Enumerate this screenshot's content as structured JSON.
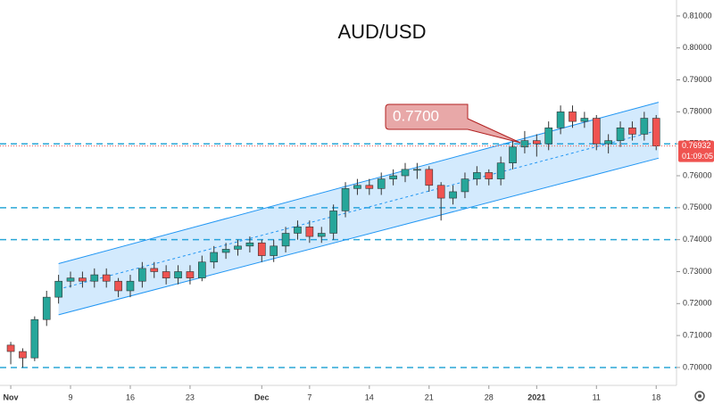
{
  "chart_data": {
    "type": "candlestick",
    "title": "AUD/USD",
    "x": [
      0,
      1,
      2,
      3,
      4,
      5,
      6,
      7,
      8,
      9,
      10,
      11,
      12,
      13,
      14,
      15,
      16,
      17,
      18,
      19,
      20,
      21,
      22,
      23,
      24,
      25,
      26,
      27,
      28,
      29,
      30,
      31,
      32,
      33,
      34,
      35,
      36,
      37,
      38,
      39,
      40,
      41,
      42,
      43,
      44,
      45,
      46,
      47,
      48,
      49,
      50,
      51,
      52,
      53,
      54
    ],
    "open": [
      0.707,
      0.705,
      0.703,
      0.715,
      0.722,
      0.727,
      0.728,
      0.727,
      0.729,
      0.727,
      0.724,
      0.727,
      0.731,
      0.73,
      0.728,
      0.73,
      0.728,
      0.733,
      0.736,
      0.737,
      0.738,
      0.739,
      0.735,
      0.738,
      0.742,
      0.744,
      0.741,
      0.742,
      0.749,
      0.756,
      0.757,
      0.756,
      0.759,
      0.76,
      0.762,
      0.762,
      0.757,
      0.753,
      0.755,
      0.759,
      0.761,
      0.759,
      0.764,
      0.769,
      0.771,
      0.77,
      0.775,
      0.78,
      0.777,
      0.778,
      0.77,
      0.771,
      0.775,
      0.773,
      0.778
    ],
    "high": [
      0.708,
      0.706,
      0.716,
      0.724,
      0.729,
      0.73,
      0.73,
      0.731,
      0.731,
      0.728,
      0.729,
      0.733,
      0.733,
      0.732,
      0.732,
      0.732,
      0.735,
      0.738,
      0.739,
      0.74,
      0.741,
      0.74,
      0.74,
      0.744,
      0.746,
      0.746,
      0.744,
      0.751,
      0.758,
      0.759,
      0.759,
      0.761,
      0.762,
      0.764,
      0.764,
      0.763,
      0.758,
      0.757,
      0.761,
      0.763,
      0.762,
      0.766,
      0.771,
      0.774,
      0.773,
      0.777,
      0.782,
      0.782,
      0.78,
      0.779,
      0.773,
      0.777,
      0.777,
      0.78,
      0.779
    ],
    "low": [
      0.701,
      0.7,
      0.702,
      0.713,
      0.72,
      0.725,
      0.725,
      0.725,
      0.725,
      0.722,
      0.722,
      0.725,
      0.728,
      0.726,
      0.726,
      0.726,
      0.727,
      0.731,
      0.734,
      0.735,
      0.736,
      0.733,
      0.733,
      0.736,
      0.74,
      0.739,
      0.739,
      0.74,
      0.747,
      0.754,
      0.754,
      0.754,
      0.757,
      0.758,
      0.759,
      0.755,
      0.746,
      0.751,
      0.753,
      0.757,
      0.757,
      0.757,
      0.762,
      0.767,
      0.766,
      0.768,
      0.773,
      0.775,
      0.775,
      0.768,
      0.767,
      0.769,
      0.771,
      0.771,
      0.768
    ],
    "close": [
      0.705,
      0.703,
      0.715,
      0.722,
      0.727,
      0.728,
      0.727,
      0.729,
      0.727,
      0.724,
      0.727,
      0.731,
      0.73,
      0.728,
      0.73,
      0.728,
      0.733,
      0.736,
      0.737,
      0.738,
      0.739,
      0.735,
      0.738,
      0.742,
      0.744,
      0.741,
      0.742,
      0.749,
      0.756,
      0.757,
      0.756,
      0.759,
      0.76,
      0.762,
      0.762,
      0.757,
      0.753,
      0.755,
      0.759,
      0.761,
      0.759,
      0.764,
      0.769,
      0.771,
      0.77,
      0.775,
      0.78,
      0.777,
      0.778,
      0.77,
      0.771,
      0.775,
      0.773,
      0.778,
      0.7693
    ],
    "up_color": "#26a69a",
    "down_color": "#ef5350",
    "xlim": [
      -0.9,
      55.7
    ],
    "xticks": [
      {
        "value": 0,
        "label": "Nov"
      },
      {
        "value": 5,
        "label": "9"
      },
      {
        "value": 10,
        "label": "16"
      },
      {
        "value": 15,
        "label": "23"
      },
      {
        "value": 21,
        "label": "Dec"
      },
      {
        "value": 25,
        "label": "7"
      },
      {
        "value": 30,
        "label": "14"
      },
      {
        "value": 35,
        "label": "21"
      },
      {
        "value": 40,
        "label": "28"
      },
      {
        "value": 44,
        "label": "2021"
      },
      {
        "value": 49,
        "label": "11"
      },
      {
        "value": 54,
        "label": "18"
      }
    ],
    "ylim": [
      0.6944,
      0.815
    ],
    "yticks": [
      {
        "value": 0.7,
        "label": "0.70000"
      },
      {
        "value": 0.71,
        "label": "0.71000"
      },
      {
        "value": 0.72,
        "label": "0.72000"
      },
      {
        "value": 0.73,
        "label": "0.73000"
      },
      {
        "value": 0.74,
        "label": "0.74000"
      },
      {
        "value": 0.75,
        "label": "0.75000"
      },
      {
        "value": 0.76,
        "label": "0.76000"
      },
      {
        "value": 0.77,
        "label": "0.77000"
      },
      {
        "value": 0.78,
        "label": "0.78000"
      },
      {
        "value": 0.79,
        "label": "0.79000"
      },
      {
        "value": 0.8,
        "label": "0.80000"
      },
      {
        "value": 0.81,
        "label": "0.81000"
      }
    ],
    "hlines": [
      0.7,
      0.74,
      0.75,
      0.77
    ],
    "hline_color": "#2aa7d6",
    "channel": {
      "x": [
        4,
        54.2
      ],
      "upper": [
        0.7325,
        0.783
      ],
      "lower": [
        0.7165,
        0.7655
      ],
      "color": "#2196f3"
    },
    "annotation": "0.7700",
    "last_price": 0.76932,
    "countdown": "01:09:05"
  }
}
